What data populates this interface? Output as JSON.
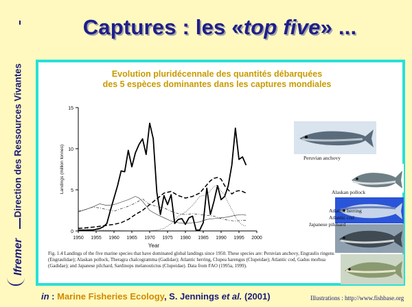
{
  "sidebar": {
    "title": "Direction des Ressources Vivantes",
    "logo": "Ifremer"
  },
  "slide_title": {
    "prefix": "Captures : les «",
    "emph": "top five",
    "suffix": "» ..."
  },
  "figure_heading": {
    "line1": "Evolution pluridécennale des quantités débarquées",
    "line2": "des 5 espèces dominantes dans les captures mondiales"
  },
  "figure_caption": "Fig. 1.4 Landings of the five marine species that have dominated global landings since 1950. These species are: Peruvian anchovy, Engraulis ringens (Engraulidae); Alaskan pollock, Theragra chalcogramma (Gadidae); Atlantic herring, Clupea harengus (Clupeidae); Atlantic cod, Gadus morhua (Gadidae); and Japanese pilchard, Sardinops melanostictus (Clupeidae). Data from FAO (1995a, 1999).",
  "fish_images": [
    {
      "label": "Peruvian anchovy",
      "icon": "anchovy-fish-photo"
    },
    {
      "label": "Alaskan pollock",
      "icon": "pollock-fish-photo"
    },
    {
      "label": "Atlantic herring",
      "icon": "herring-fish-photo"
    },
    {
      "label": "Atlantic cod",
      "icon": "cod-fish-photo"
    },
    {
      "label": "Japanese pilchard",
      "icon": "pilchard-fish-photo"
    }
  ],
  "footer": {
    "in_label": "in",
    "book": "Marine Fisheries Ecology",
    "authors": ", S. Jennings",
    "etal": "et al.",
    "year": "(2001)",
    "illustrations": "Illustrations : http://www.fishbase.org"
  },
  "colors": {
    "background": "#fff9c0",
    "title_blue": "#1f1f8a",
    "frame_cyan": "#28e0d8",
    "heading_gold": "#c89a00"
  },
  "chart_data": {
    "type": "line",
    "xlabel": "Year",
    "ylabel": "Landings (million tonnes)",
    "xlim": [
      1950,
      2000
    ],
    "ylim": [
      0,
      15
    ],
    "xticks": [
      1950,
      1955,
      1960,
      1965,
      1970,
      1975,
      1980,
      1985,
      1990,
      1995,
      2000
    ],
    "yticks": [
      0,
      5,
      10,
      15
    ],
    "series": [
      {
        "name": "Peruvian anchovy",
        "style": "solid-thick",
        "points": [
          [
            1950,
            0.1
          ],
          [
            1952,
            0.1
          ],
          [
            1954,
            0.1
          ],
          [
            1955,
            0.2
          ],
          [
            1956,
            0.3
          ],
          [
            1957,
            0.5
          ],
          [
            1958,
            0.9
          ],
          [
            1959,
            2.5
          ],
          [
            1960,
            4.0
          ],
          [
            1961,
            5.5
          ],
          [
            1962,
            7.3
          ],
          [
            1963,
            7.2
          ],
          [
            1964,
            9.8
          ],
          [
            1965,
            7.8
          ],
          [
            1966,
            9.5
          ],
          [
            1967,
            10.5
          ],
          [
            1968,
            11.2
          ],
          [
            1969,
            9.3
          ],
          [
            1970,
            13.1
          ],
          [
            1971,
            11.2
          ],
          [
            1972,
            4.7
          ],
          [
            1973,
            2.0
          ],
          [
            1974,
            4.3
          ],
          [
            1975,
            3.2
          ],
          [
            1976,
            4.4
          ],
          [
            1977,
            0.9
          ],
          [
            1978,
            1.4
          ],
          [
            1979,
            1.5
          ],
          [
            1980,
            0.8
          ],
          [
            1981,
            1.6
          ],
          [
            1982,
            1.8
          ],
          [
            1983,
            0.1
          ],
          [
            1984,
            0.1
          ],
          [
            1985,
            1.0
          ],
          [
            1986,
            5.2
          ],
          [
            1987,
            2.0
          ],
          [
            1988,
            3.6
          ],
          [
            1989,
            5.5
          ],
          [
            1990,
            3.8
          ],
          [
            1991,
            4.2
          ],
          [
            1992,
            5.5
          ],
          [
            1993,
            8.0
          ],
          [
            1994,
            12.5
          ],
          [
            1995,
            8.7
          ],
          [
            1996,
            9.0
          ],
          [
            1997,
            8.0
          ]
        ]
      },
      {
        "name": "Alaskan pollock",
        "style": "dashed",
        "points": [
          [
            1950,
            0.3
          ],
          [
            1955,
            0.5
          ],
          [
            1960,
            0.8
          ],
          [
            1962,
            1.0
          ],
          [
            1964,
            1.4
          ],
          [
            1966,
            2.0
          ],
          [
            1968,
            2.5
          ],
          [
            1970,
            3.2
          ],
          [
            1972,
            3.9
          ],
          [
            1974,
            4.6
          ],
          [
            1976,
            4.8
          ],
          [
            1978,
            4.3
          ],
          [
            1980,
            4.0
          ],
          [
            1982,
            4.2
          ],
          [
            1984,
            4.6
          ],
          [
            1986,
            5.6
          ],
          [
            1987,
            6.1
          ],
          [
            1988,
            6.4
          ],
          [
            1989,
            6.5
          ],
          [
            1990,
            6.3
          ],
          [
            1991,
            5.5
          ],
          [
            1992,
            5.0
          ],
          [
            1993,
            4.5
          ],
          [
            1994,
            4.8
          ],
          [
            1995,
            4.9
          ],
          [
            1996,
            4.8
          ],
          [
            1997,
            4.6
          ]
        ]
      },
      {
        "name": "Atlantic herring",
        "style": "solid-thin",
        "points": [
          [
            1950,
            2.3
          ],
          [
            1952,
            2.6
          ],
          [
            1954,
            2.9
          ],
          [
            1956,
            3.3
          ],
          [
            1958,
            3.1
          ],
          [
            1960,
            3.2
          ],
          [
            1962,
            3.5
          ],
          [
            1964,
            3.8
          ],
          [
            1966,
            4.2
          ],
          [
            1967,
            4.0
          ],
          [
            1968,
            3.6
          ],
          [
            1970,
            2.5
          ],
          [
            1972,
            2.0
          ],
          [
            1974,
            1.6
          ],
          [
            1976,
            1.2
          ],
          [
            1978,
            1.0
          ],
          [
            1980,
            0.9
          ],
          [
            1982,
            1.0
          ],
          [
            1984,
            1.1
          ],
          [
            1986,
            1.4
          ],
          [
            1988,
            1.5
          ],
          [
            1990,
            1.6
          ],
          [
            1992,
            1.7
          ],
          [
            1994,
            1.9
          ],
          [
            1996,
            2.0
          ],
          [
            1997,
            1.9
          ]
        ]
      },
      {
        "name": "Atlantic cod",
        "style": "dash-dot",
        "points": [
          [
            1950,
            2.4
          ],
          [
            1952,
            2.6
          ],
          [
            1954,
            2.9
          ],
          [
            1956,
            2.8
          ],
          [
            1958,
            2.6
          ],
          [
            1960,
            2.4
          ],
          [
            1962,
            2.7
          ],
          [
            1964,
            3.0
          ],
          [
            1966,
            3.4
          ],
          [
            1968,
            3.9
          ],
          [
            1970,
            3.2
          ],
          [
            1972,
            3.0
          ],
          [
            1974,
            2.8
          ],
          [
            1976,
            2.4
          ],
          [
            1978,
            2.1
          ],
          [
            1980,
            2.0
          ],
          [
            1982,
            2.1
          ],
          [
            1984,
            2.0
          ],
          [
            1986,
            1.9
          ],
          [
            1988,
            1.8
          ],
          [
            1990,
            1.5
          ],
          [
            1992,
            1.3
          ],
          [
            1994,
            1.2
          ],
          [
            1996,
            1.3
          ],
          [
            1997,
            1.3
          ]
        ]
      },
      {
        "name": "Japanese pilchard",
        "style": "dotted",
        "points": [
          [
            1950,
            0.4
          ],
          [
            1952,
            0.3
          ],
          [
            1954,
            0.2
          ],
          [
            1956,
            0.1
          ],
          [
            1960,
            0.05
          ],
          [
            1965,
            0.02
          ],
          [
            1970,
            0.02
          ],
          [
            1972,
            0.1
          ],
          [
            1974,
            0.3
          ],
          [
            1976,
            0.9
          ],
          [
            1978,
            1.8
          ],
          [
            1980,
            2.3
          ],
          [
            1982,
            3.1
          ],
          [
            1984,
            4.2
          ],
          [
            1986,
            4.4
          ],
          [
            1988,
            5.4
          ],
          [
            1989,
            5.6
          ],
          [
            1990,
            4.8
          ],
          [
            1991,
            4.4
          ],
          [
            1992,
            3.4
          ],
          [
            1993,
            2.6
          ],
          [
            1994,
            1.7
          ],
          [
            1995,
            1.1
          ],
          [
            1996,
            0.7
          ],
          [
            1997,
            0.6
          ]
        ]
      }
    ]
  }
}
